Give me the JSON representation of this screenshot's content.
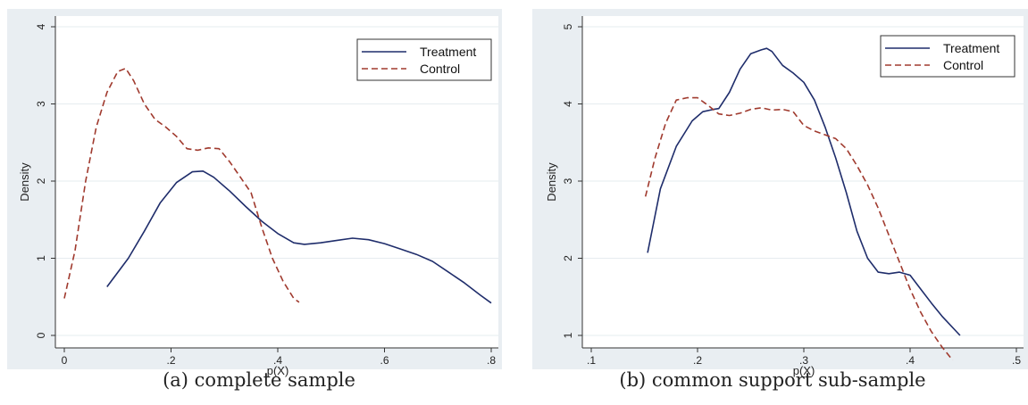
{
  "chart_data": [
    {
      "type": "line",
      "caption": "(a) complete sample",
      "xlabel": "p(X)",
      "ylabel": "Density",
      "xlim": [
        0,
        0.8
      ],
      "ylim": [
        0,
        4
      ],
      "xticks": [
        0,
        0.2,
        0.4,
        0.6,
        0.8
      ],
      "xtick_labels": [
        "0",
        ".2",
        ".4",
        ".6",
        ".8"
      ],
      "yticks": [
        0,
        1,
        2,
        3,
        4
      ],
      "ytick_labels": [
        "0",
        "1",
        "2",
        "3",
        "4"
      ],
      "grid": true,
      "legend_position": "top-right",
      "series": [
        {
          "name": "Treatment",
          "style": "solid",
          "color": "#1f2d6b",
          "x": [
            0.08,
            0.12,
            0.15,
            0.18,
            0.21,
            0.24,
            0.26,
            0.28,
            0.31,
            0.34,
            0.37,
            0.4,
            0.43,
            0.45,
            0.48,
            0.51,
            0.54,
            0.57,
            0.6,
            0.63,
            0.66,
            0.69,
            0.72,
            0.75,
            0.78,
            0.8
          ],
          "y": [
            0.63,
            1.0,
            1.35,
            1.72,
            1.98,
            2.12,
            2.13,
            2.05,
            1.87,
            1.67,
            1.48,
            1.32,
            1.2,
            1.18,
            1.2,
            1.23,
            1.26,
            1.24,
            1.19,
            1.12,
            1.05,
            0.96,
            0.82,
            0.68,
            0.52,
            0.42
          ]
        },
        {
          "name": "Control",
          "style": "dashed",
          "color": "#a03a2e",
          "x": [
            0.0,
            0.02,
            0.04,
            0.06,
            0.08,
            0.1,
            0.115,
            0.13,
            0.15,
            0.17,
            0.19,
            0.21,
            0.23,
            0.25,
            0.27,
            0.29,
            0.31,
            0.33,
            0.35,
            0.37,
            0.39,
            0.41,
            0.43,
            0.44
          ],
          "y": [
            0.48,
            1.1,
            2.0,
            2.7,
            3.15,
            3.42,
            3.46,
            3.3,
            3.0,
            2.8,
            2.7,
            2.58,
            2.42,
            2.4,
            2.43,
            2.42,
            2.25,
            2.05,
            1.85,
            1.4,
            1.0,
            0.7,
            0.48,
            0.43
          ]
        }
      ]
    },
    {
      "type": "line",
      "caption": "(b) common support sub-sample",
      "xlabel": "p(X)",
      "ylabel": "Density",
      "xlim": [
        0.1,
        0.5
      ],
      "ylim": [
        1,
        5
      ],
      "xticks": [
        0.1,
        0.2,
        0.3,
        0.4,
        0.5
      ],
      "xtick_labels": [
        ".1",
        ".2",
        ".3",
        ".4",
        ".5"
      ],
      "yticks": [
        1,
        2,
        3,
        4,
        5
      ],
      "ytick_labels": [
        "1",
        "2",
        "3",
        "4",
        "5"
      ],
      "grid": true,
      "legend_position": "top-right",
      "series": [
        {
          "name": "Treatment",
          "style": "solid",
          "color": "#1f2d6b",
          "x": [
            0.153,
            0.165,
            0.18,
            0.195,
            0.205,
            0.215,
            0.22,
            0.23,
            0.24,
            0.25,
            0.26,
            0.265,
            0.27,
            0.28,
            0.29,
            0.3,
            0.31,
            0.32,
            0.33,
            0.34,
            0.35,
            0.36,
            0.37,
            0.38,
            0.39,
            0.4,
            0.41,
            0.42,
            0.43,
            0.447
          ],
          "y": [
            2.07,
            2.9,
            3.45,
            3.78,
            3.9,
            3.93,
            3.94,
            4.15,
            4.45,
            4.65,
            4.7,
            4.72,
            4.68,
            4.5,
            4.4,
            4.28,
            4.05,
            3.7,
            3.3,
            2.85,
            2.35,
            2.0,
            1.82,
            1.8,
            1.82,
            1.78,
            1.6,
            1.42,
            1.25,
            1.0
          ]
        },
        {
          "name": "Control",
          "style": "dashed",
          "color": "#a03a2e",
          "x": [
            0.151,
            0.16,
            0.17,
            0.18,
            0.19,
            0.2,
            0.21,
            0.22,
            0.23,
            0.24,
            0.25,
            0.26,
            0.27,
            0.28,
            0.29,
            0.3,
            0.31,
            0.32,
            0.33,
            0.34,
            0.35,
            0.36,
            0.37,
            0.38,
            0.39,
            0.4,
            0.41,
            0.42,
            0.43,
            0.44
          ],
          "y": [
            2.8,
            3.3,
            3.75,
            4.05,
            4.08,
            4.08,
            3.98,
            3.87,
            3.85,
            3.88,
            3.93,
            3.95,
            3.92,
            3.93,
            3.9,
            3.72,
            3.65,
            3.6,
            3.55,
            3.42,
            3.2,
            2.95,
            2.65,
            2.3,
            1.95,
            1.6,
            1.3,
            1.05,
            0.85,
            0.68
          ]
        }
      ]
    }
  ]
}
